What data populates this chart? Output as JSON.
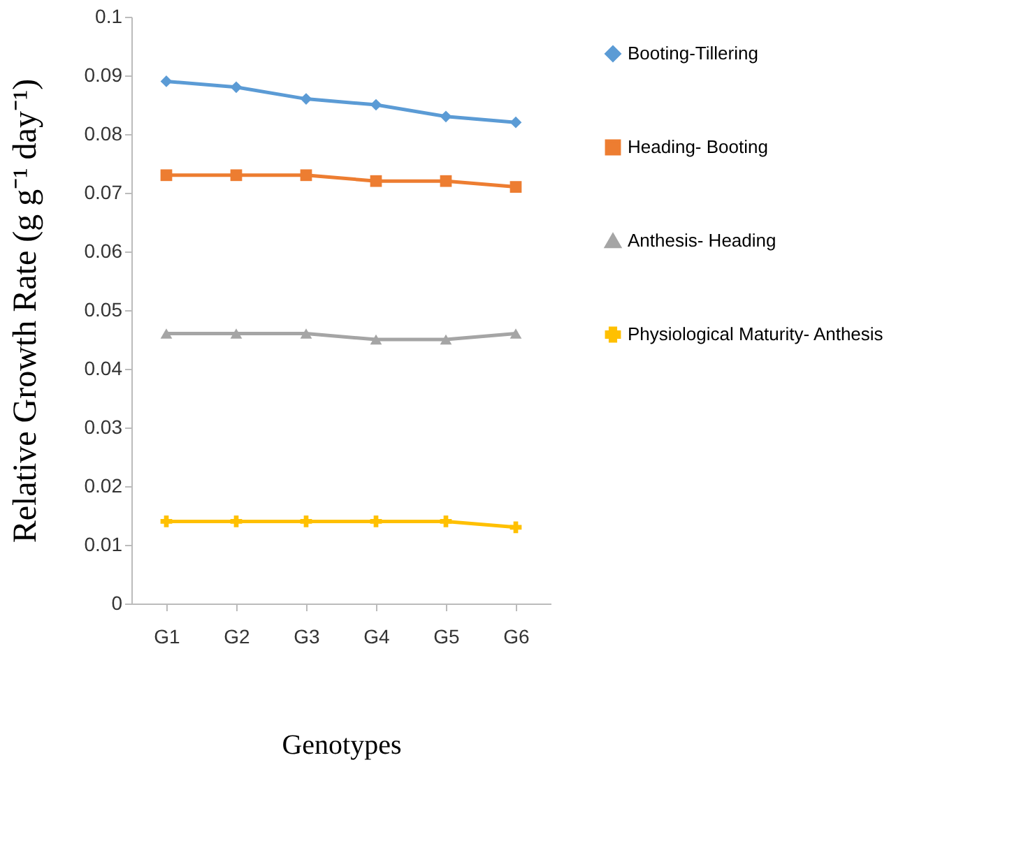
{
  "chart_data": {
    "type": "line",
    "xlabel": "Genotypes",
    "ylabel": "Relative Growth Rate (g g⁻¹ day⁻¹)",
    "categories": [
      "G1",
      "G2",
      "G3",
      "G4",
      "G5",
      "G6"
    ],
    "series": [
      {
        "name": "Booting-Tillering",
        "color": "#5b9bd5",
        "marker": "diamond",
        "values": [
          0.089,
          0.088,
          0.086,
          0.085,
          0.083,
          0.082
        ]
      },
      {
        "name": "Heading- Booting",
        "color": "#ed7d31",
        "marker": "square",
        "values": [
          0.073,
          0.073,
          0.073,
          0.072,
          0.072,
          0.071
        ]
      },
      {
        "name": "Anthesis- Heading",
        "color": "#a5a5a5",
        "marker": "triangle",
        "values": [
          0.046,
          0.046,
          0.046,
          0.045,
          0.045,
          0.046
        ]
      },
      {
        "name": "Physiological Maturity- Anthesis",
        "color": "#ffc000",
        "marker": "cross",
        "values": [
          0.014,
          0.014,
          0.014,
          0.014,
          0.014,
          0.013
        ]
      }
    ],
    "ylim": [
      0,
      0.1
    ],
    "yticks": [
      0,
      0.01,
      0.02,
      0.03,
      0.04,
      0.05,
      0.06,
      0.07,
      0.08,
      0.09,
      0.1
    ],
    "grid": false,
    "legend": "right",
    "line_style": "solid"
  }
}
